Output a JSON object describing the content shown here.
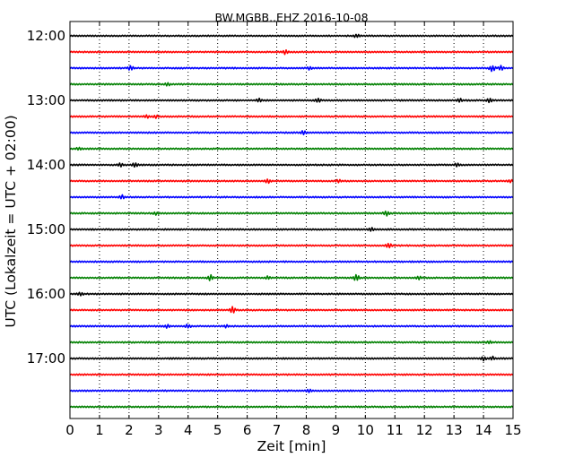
{
  "chart_data": {
    "type": "line",
    "title": "BW.MGBB..EHZ 2016-10-08",
    "xlabel": "Zeit  [min]",
    "ylabel": "UTC (Lokalzeit = UTC + 02:00)",
    "xlim": [
      0,
      15
    ],
    "x_ticks": [
      0,
      1,
      2,
      3,
      4,
      5,
      6,
      7,
      8,
      9,
      10,
      11,
      12,
      13,
      14,
      15
    ],
    "x_tick_labels": [
      "0",
      "1",
      "2",
      "3",
      "4",
      "5",
      "6",
      "7",
      "8",
      "9",
      "10",
      "11",
      "12",
      "13",
      "14",
      "15"
    ],
    "y_tick_labels": [
      "12:00",
      "13:00",
      "14:00",
      "15:00",
      "16:00",
      "17:00"
    ],
    "grid": "vertical dotted",
    "trace_colors": [
      "#000000",
      "#ff0000",
      "#0000ff",
      "#008000"
    ],
    "traces": [
      {
        "start": "12:00",
        "color": "#000000",
        "events": [
          [
            9.7,
            2.6
          ]
        ]
      },
      {
        "start": "12:15",
        "color": "#ff0000",
        "events": [
          [
            7.3,
            3.5
          ]
        ]
      },
      {
        "start": "12:30",
        "color": "#0000ff",
        "events": [
          [
            2.05,
            3.2
          ],
          [
            8.1,
            2.3
          ],
          [
            14.3,
            4.2
          ],
          [
            14.6,
            3.5
          ]
        ]
      },
      {
        "start": "12:45",
        "color": "#008000",
        "events": [
          [
            3.3,
            2.6
          ]
        ]
      },
      {
        "start": "13:00",
        "color": "#000000",
        "events": [
          [
            6.4,
            2.6
          ],
          [
            8.4,
            3.2
          ],
          [
            13.2,
            2.6
          ],
          [
            14.2,
            3.0
          ]
        ]
      },
      {
        "start": "13:15",
        "color": "#ff0000",
        "events": [
          [
            2.6,
            2.4
          ],
          [
            2.9,
            2.4
          ]
        ]
      },
      {
        "start": "13:30",
        "color": "#0000ff",
        "events": [
          [
            7.9,
            3.2
          ]
        ]
      },
      {
        "start": "13:45",
        "color": "#008000",
        "events": [
          [
            0.3,
            2.3
          ]
        ]
      },
      {
        "start": "14:00",
        "color": "#000000",
        "events": [
          [
            1.7,
            2.6
          ],
          [
            2.2,
            3.0
          ],
          [
            13.1,
            2.6
          ]
        ]
      },
      {
        "start": "14:15",
        "color": "#ff0000",
        "events": [
          [
            6.7,
            3.0
          ],
          [
            9.1,
            2.4
          ],
          [
            14.9,
            2.4
          ]
        ]
      },
      {
        "start": "14:30",
        "color": "#0000ff",
        "events": [
          [
            1.75,
            3.0
          ]
        ]
      },
      {
        "start": "14:45",
        "color": "#008000",
        "events": [
          [
            2.9,
            2.3
          ],
          [
            10.7,
            3.4
          ]
        ]
      },
      {
        "start": "15:00",
        "color": "#000000",
        "events": [
          [
            10.2,
            2.6
          ]
        ]
      },
      {
        "start": "15:15",
        "color": "#ff0000",
        "events": [
          [
            10.8,
            3.6
          ]
        ]
      },
      {
        "start": "15:30",
        "color": "#0000ff",
        "events": []
      },
      {
        "start": "15:45",
        "color": "#008000",
        "events": [
          [
            4.75,
            3.8
          ],
          [
            6.7,
            2.6
          ],
          [
            9.7,
            4.2
          ],
          [
            11.8,
            2.6
          ]
        ]
      },
      {
        "start": "16:00",
        "color": "#000000",
        "events": [
          [
            0.35,
            2.8
          ]
        ]
      },
      {
        "start": "16:15",
        "color": "#ff0000",
        "events": [
          [
            5.5,
            4.2
          ]
        ]
      },
      {
        "start": "16:30",
        "color": "#0000ff",
        "events": [
          [
            3.3,
            2.6
          ],
          [
            4.0,
            2.8
          ],
          [
            5.3,
            2.3
          ]
        ]
      },
      {
        "start": "16:45",
        "color": "#008000",
        "events": [
          [
            14.2,
            2.4
          ]
        ]
      },
      {
        "start": "17:00",
        "color": "#000000",
        "events": [
          [
            14.0,
            3.0
          ],
          [
            14.3,
            2.8
          ]
        ]
      },
      {
        "start": "17:15",
        "color": "#ff0000",
        "events": []
      },
      {
        "start": "17:30",
        "color": "#0000ff",
        "events": [
          [
            8.1,
            2.8
          ]
        ]
      },
      {
        "start": "17:45",
        "color": "#008000",
        "events": []
      }
    ]
  }
}
